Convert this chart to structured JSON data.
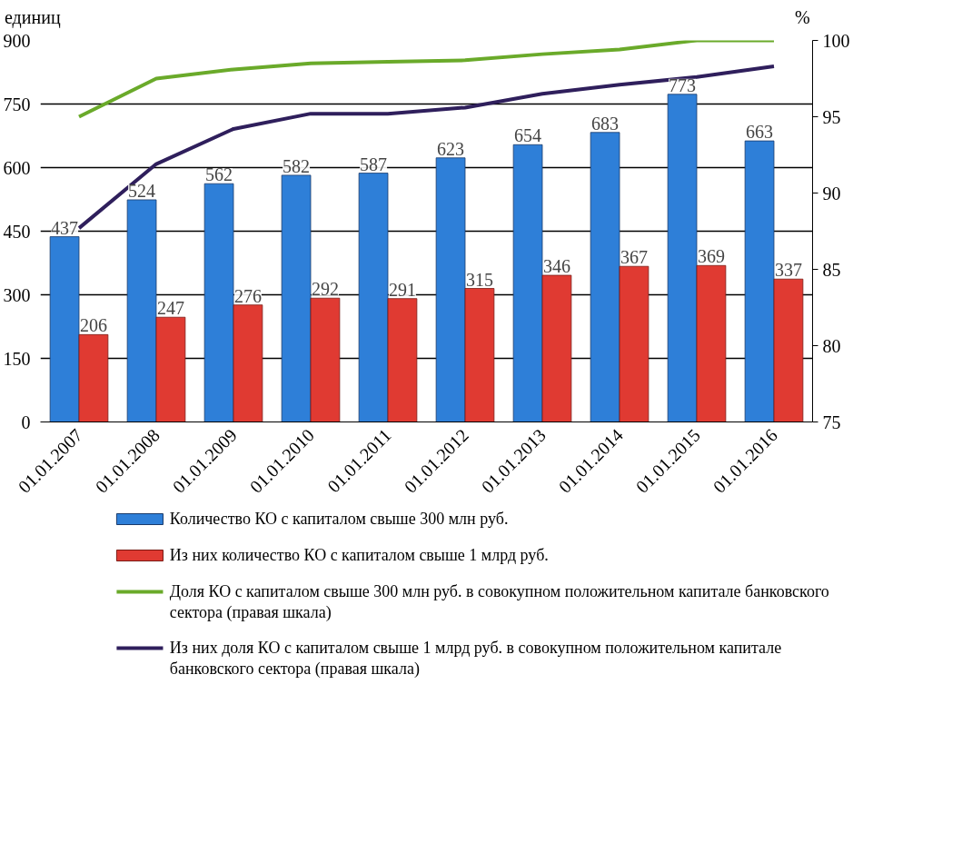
{
  "chart_data": {
    "type": "bar",
    "ylabel": "единиц",
    "y2label": "%",
    "categories": [
      "01.01.2007",
      "01.01.2008",
      "01.01.2009",
      "01.01.2010",
      "01.01.2011",
      "01.01.2012",
      "01.01.2013",
      "01.01.2014",
      "01.01.2015",
      "01.01.2016"
    ],
    "series": [
      {
        "name": "Количество КО с капиталом свыше 300 млн руб.",
        "color": "#2e7fd8",
        "values": [
          437,
          524,
          562,
          582,
          587,
          623,
          654,
          683,
          773,
          663
        ],
        "value_labels": [
          "437",
          "524",
          "562",
          "582",
          "587",
          "623",
          "654",
          "683",
          "773",
          "663"
        ]
      },
      {
        "name": "Из них количество КО с капиталом свыше 1 млрд руб.",
        "color": "#e03a32",
        "values": [
          206,
          247,
          276,
          292,
          291,
          315,
          346,
          367,
          369,
          337
        ],
        "value_labels": [
          "206",
          "247",
          "276",
          "292",
          "291",
          "315",
          "346",
          "367",
          "369",
          "337"
        ]
      },
      {
        "type": "line",
        "axis": "y2",
        "name": "Доля КО с капиталом свыше 300 млн руб. в совокупном положительном капитале банковского сектора (правая шкала)",
        "color": "#6aaa2a",
        "values": [
          95.0,
          97.5,
          98.1,
          98.5,
          98.6,
          98.7,
          99.1,
          99.4,
          100,
          100
        ]
      },
      {
        "type": "line",
        "axis": "y2",
        "name": "Из них доля КО с капиталом свыше 1 млрд руб. в совокупном положительном капитале банковского сектора (правая шкала)",
        "color": "#2f1f5c",
        "values": [
          87.7,
          91.9,
          94.2,
          95.2,
          95.2,
          95.6,
          96.5,
          97.1,
          97.6,
          98.3
        ]
      }
    ],
    "ylim": [
      0,
      900
    ],
    "yticks": [
      0,
      150,
      300,
      450,
      600,
      750,
      900
    ],
    "y2lim": [
      75,
      100
    ],
    "y2ticks": [
      75,
      80,
      85,
      90,
      95,
      100
    ],
    "grid": "y",
    "legend": "bottom",
    "line_style": "solid",
    "marker": "none"
  }
}
